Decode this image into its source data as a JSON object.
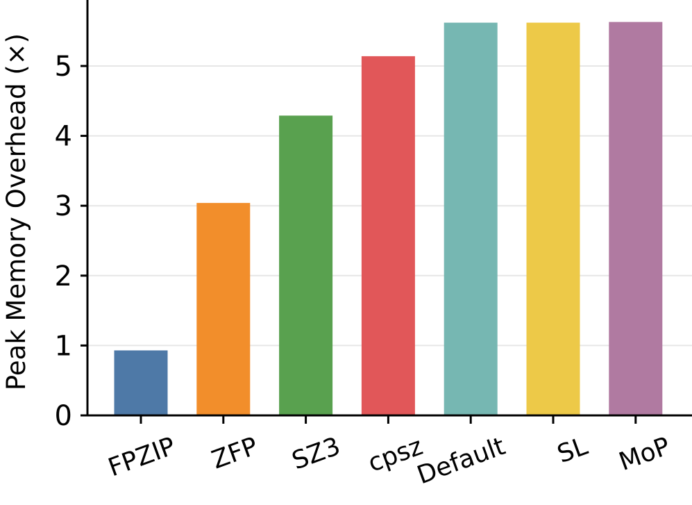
{
  "chart_data": {
    "type": "bar",
    "categories": [
      "FPZIP",
      "ZFP",
      "SZ3",
      "cpsz",
      "Default",
      "SL",
      "MoP"
    ],
    "values": [
      0.93,
      3.04,
      4.29,
      5.14,
      5.62,
      5.62,
      5.63
    ],
    "colors": [
      "#4e79a7",
      "#f28e2b",
      "#59a14f",
      "#e15759",
      "#76b7b2",
      "#edc948",
      "#b07aa1"
    ],
    "title": "",
    "xlabel": "",
    "ylabel": "Peak Memory Overhead (×)",
    "ylim": [
      0,
      5.9
    ],
    "yticks": [
      0,
      1,
      2,
      3,
      4,
      5
    ],
    "grid": "horizontal",
    "legend": "none"
  }
}
